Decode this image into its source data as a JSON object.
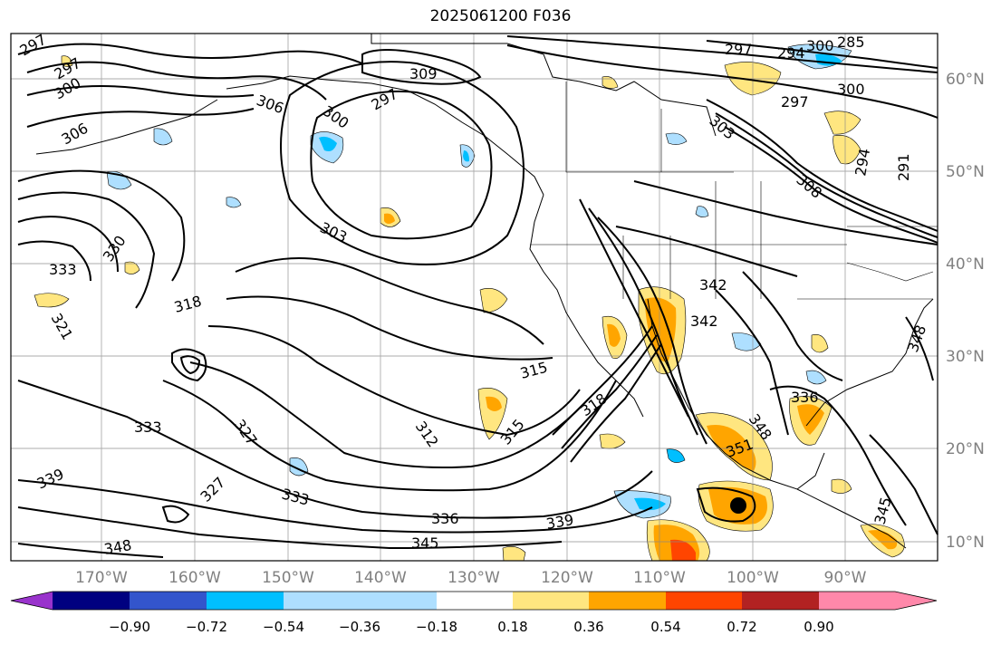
{
  "title": "2025061200 F036",
  "lat_labels": [
    "60°N",
    "50°N",
    "40°N",
    "30°N",
    "20°N",
    "10°N"
  ],
  "lon_labels": [
    "170°W",
    "160°W",
    "150°W",
    "140°W",
    "130°W",
    "120°W",
    "110°W",
    "100°W",
    "90°W"
  ],
  "contour_labels": [
    "297",
    "300",
    "306",
    "297",
    "300",
    "306",
    "303",
    "309",
    "297",
    "300",
    "303",
    "297",
    "294",
    "285",
    "297",
    "300",
    "294",
    "291",
    "308",
    "330",
    "333",
    "318",
    "321",
    "312",
    "315",
    "315",
    "318",
    "342",
    "342",
    "327",
    "333",
    "339",
    "327",
    "333",
    "336",
    "339",
    "345",
    "348",
    "336",
    "348",
    "351",
    "345",
    "348"
  ],
  "colorbar": {
    "ticks": [
      "−0.90",
      "−0.72",
      "−0.54",
      "−0.36",
      "−0.18",
      "0.18",
      "0.36",
      "0.54",
      "0.72",
      "0.90"
    ],
    "colors": [
      "#9933cc",
      "#000080",
      "#3355cc",
      "#00bfff",
      "#aedfff",
      "#ffffff",
      "#ffe680",
      "#ffa500",
      "#ff4500",
      "#b22222",
      "#ff88aa"
    ]
  },
  "field_colors": {
    "light_blue": "#aedfff",
    "blue": "#00bfff",
    "yellow": "#ffe680",
    "orange": "#ffa500",
    "red": "#ff4500"
  }
}
